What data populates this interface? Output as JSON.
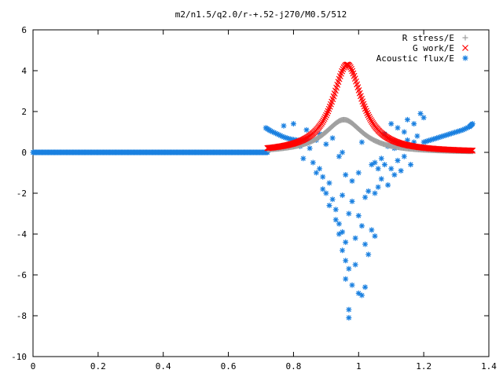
{
  "chart_data": {
    "type": "scatter",
    "title": "m2/n1.5/q2.0/r-+.52-j270/M0.5/512",
    "xlabel": "",
    "ylabel": "",
    "xlim": [
      0,
      1.4
    ],
    "ylim": [
      -10,
      6
    ],
    "x_ticks": [
      "0",
      "0.2",
      "0.4",
      "0.6",
      "0.8",
      "1",
      "1.2",
      "1.4"
    ],
    "y_ticks": [
      "6",
      "4",
      "2",
      "0",
      "-2",
      "-4",
      "-6",
      "-8",
      "-10"
    ],
    "legend_position": "top-right",
    "grid": false,
    "series": [
      {
        "name": "R stress/E",
        "marker": "+",
        "color": "#a0a0a0",
        "x_start": 0.72,
        "x_end": 1.35,
        "peak_x": 0.955,
        "peak_y": 1.6,
        "width": 0.09,
        "base": 0.0
      },
      {
        "name": "G work/E",
        "marker": "x",
        "color": "#ff0000",
        "x_start": 0.72,
        "x_end": 1.35,
        "peak_x": 0.965,
        "peak_y": 4.3,
        "width": 0.07,
        "base": 0.0
      },
      {
        "name": "Acoustic flux/E",
        "marker": "*",
        "color": "#1a80e0",
        "flat": {
          "x_start": 0.0,
          "x_end": 0.72,
          "y": 0.0
        },
        "left_arc": [
          [
            0.715,
            1.2
          ],
          [
            0.73,
            1.05
          ],
          [
            0.75,
            0.9
          ],
          [
            0.77,
            0.75
          ],
          [
            0.79,
            0.65
          ],
          [
            0.81,
            0.6
          ],
          [
            0.83,
            0.55
          ],
          [
            0.85,
            0.55
          ]
        ],
        "right_arc": [
          [
            1.2,
            0.5
          ],
          [
            1.22,
            0.6
          ],
          [
            1.24,
            0.7
          ],
          [
            1.26,
            0.8
          ],
          [
            1.28,
            0.9
          ],
          [
            1.3,
            1.0
          ],
          [
            1.32,
            1.1
          ],
          [
            1.34,
            1.25
          ],
          [
            1.35,
            1.4
          ]
        ],
        "scatter": [
          [
            0.77,
            1.3
          ],
          [
            0.8,
            1.4
          ],
          [
            0.82,
            0.3
          ],
          [
            0.83,
            -0.3
          ],
          [
            0.84,
            1.1
          ],
          [
            0.85,
            0.2
          ],
          [
            0.86,
            -0.5
          ],
          [
            0.87,
            0.6
          ],
          [
            0.87,
            -1.0
          ],
          [
            0.88,
            -0.8
          ],
          [
            0.88,
            0.9
          ],
          [
            0.89,
            -1.8
          ],
          [
            0.89,
            -1.2
          ],
          [
            0.9,
            -2.0
          ],
          [
            0.9,
            0.4
          ],
          [
            0.91,
            -2.6
          ],
          [
            0.91,
            -1.5
          ],
          [
            0.92,
            -2.3
          ],
          [
            0.92,
            0.7
          ],
          [
            0.93,
            -3.3
          ],
          [
            0.93,
            -2.8
          ],
          [
            0.94,
            -3.5
          ],
          [
            0.94,
            -0.2
          ],
          [
            0.94,
            -4.0
          ],
          [
            0.95,
            -4.8
          ],
          [
            0.95,
            -3.9
          ],
          [
            0.95,
            -2.1
          ],
          [
            0.95,
            0.0
          ],
          [
            0.96,
            -5.3
          ],
          [
            0.96,
            -6.2
          ],
          [
            0.96,
            -4.4
          ],
          [
            0.96,
            -1.1
          ],
          [
            0.97,
            -7.7
          ],
          [
            0.97,
            -8.1
          ],
          [
            0.97,
            -5.7
          ],
          [
            0.97,
            -3.0
          ],
          [
            0.98,
            -6.5
          ],
          [
            0.98,
            -2.4
          ],
          [
            0.98,
            -1.4
          ],
          [
            0.99,
            -4.2
          ],
          [
            0.99,
            -5.5
          ],
          [
            1.0,
            -6.9
          ],
          [
            1.0,
            -3.1
          ],
          [
            1.0,
            -1.0
          ],
          [
            1.01,
            -7.0
          ],
          [
            1.01,
            -3.6
          ],
          [
            1.01,
            0.5
          ],
          [
            1.02,
            -6.6
          ],
          [
            1.02,
            -4.5
          ],
          [
            1.02,
            -2.2
          ],
          [
            1.03,
            -5.0
          ],
          [
            1.03,
            -1.9
          ],
          [
            1.04,
            -3.8
          ],
          [
            1.04,
            -0.6
          ],
          [
            1.05,
            -4.1
          ],
          [
            1.05,
            -2.0
          ],
          [
            1.05,
            -0.5
          ],
          [
            1.06,
            -1.7
          ],
          [
            1.06,
            -0.8
          ],
          [
            1.07,
            -0.3
          ],
          [
            1.07,
            -1.3
          ],
          [
            1.08,
            -0.6
          ],
          [
            1.08,
            0.9
          ],
          [
            1.09,
            -1.6
          ],
          [
            1.09,
            0.3
          ],
          [
            1.1,
            -0.8
          ],
          [
            1.1,
            1.4
          ],
          [
            1.11,
            0.2
          ],
          [
            1.11,
            -1.1
          ],
          [
            1.12,
            -0.4
          ],
          [
            1.12,
            1.2
          ],
          [
            1.13,
            -0.9
          ],
          [
            1.13,
            0.4
          ],
          [
            1.14,
            1.0
          ],
          [
            1.14,
            -0.2
          ],
          [
            1.15,
            1.6
          ],
          [
            1.15,
            0.6
          ],
          [
            1.16,
            -0.6
          ],
          [
            1.17,
            1.4
          ],
          [
            1.17,
            0.5
          ],
          [
            1.18,
            0.8
          ],
          [
            1.19,
            1.9
          ],
          [
            1.19,
            0.2
          ],
          [
            1.2,
            1.7
          ]
        ]
      }
    ]
  }
}
